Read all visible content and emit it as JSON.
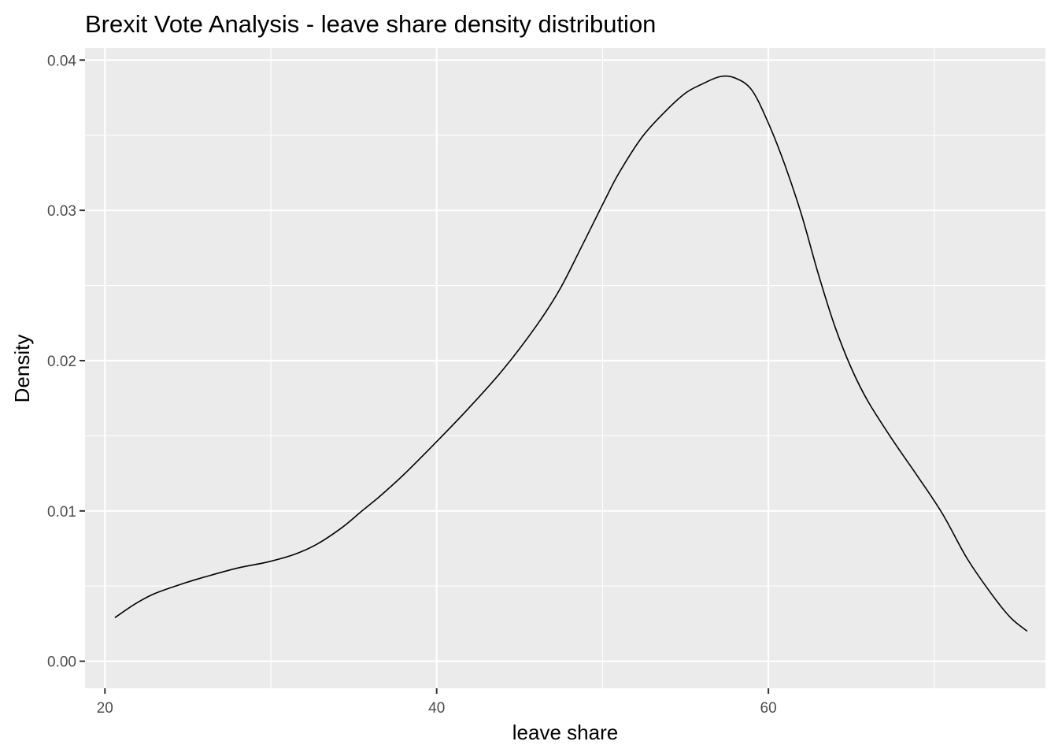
{
  "chart_data": {
    "type": "line",
    "title": "Brexit Vote Analysis - leave share density distribution",
    "xlabel": "leave share",
    "ylabel": "Density",
    "xlim": [
      18.8,
      76.7
    ],
    "ylim": [
      -0.0018,
      0.0408
    ],
    "x_ticks": [
      20,
      40,
      60
    ],
    "x_tick_labels": [
      "20",
      "40",
      "60"
    ],
    "x_minor_ticks": [
      30,
      50,
      70
    ],
    "y_ticks": [
      0,
      0.01,
      0.02,
      0.03,
      0.04
    ],
    "y_tick_labels": [
      "0.00",
      "0.01",
      "0.02",
      "0.03",
      "0.04"
    ],
    "y_minor_ticks": [
      0.005,
      0.015,
      0.025,
      0.035
    ],
    "grid": true,
    "legend": "none",
    "colors": {
      "panel": "#ebebeb",
      "grid": "#ffffff",
      "line": "#000000",
      "tick_text": "#4d4d4d"
    },
    "series": [
      {
        "x": [
          20.6,
          21.8,
          23.0,
          24.8,
          26.0,
          28.0,
          29.8,
          31.4,
          32.8,
          34.3,
          35.5,
          36.6,
          38.0,
          39.9,
          41.9,
          44.0,
          46.0,
          47.4,
          48.7,
          50.1,
          51.0,
          52.4,
          53.8,
          55.0,
          56.0,
          57.1,
          58.0,
          59.0,
          60.0,
          61.0,
          62.0,
          63.0,
          64.0,
          65.0,
          66.0,
          67.5,
          69.0,
          70.5,
          72.0,
          73.5,
          74.6,
          75.6
        ],
        "y": [
          0.0029,
          0.0038,
          0.0045,
          0.0052,
          0.0056,
          0.0062,
          0.0066,
          0.0071,
          0.0078,
          0.0089,
          0.01,
          0.011,
          0.0124,
          0.0145,
          0.0168,
          0.0194,
          0.0223,
          0.0247,
          0.0275,
          0.0306,
          0.0325,
          0.0349,
          0.0366,
          0.0378,
          0.0384,
          0.0389,
          0.0388,
          0.038,
          0.0358,
          0.033,
          0.0297,
          0.0258,
          0.0223,
          0.0195,
          0.0173,
          0.0147,
          0.0123,
          0.0098,
          0.0068,
          0.0044,
          0.0029,
          0.002
        ]
      }
    ]
  }
}
